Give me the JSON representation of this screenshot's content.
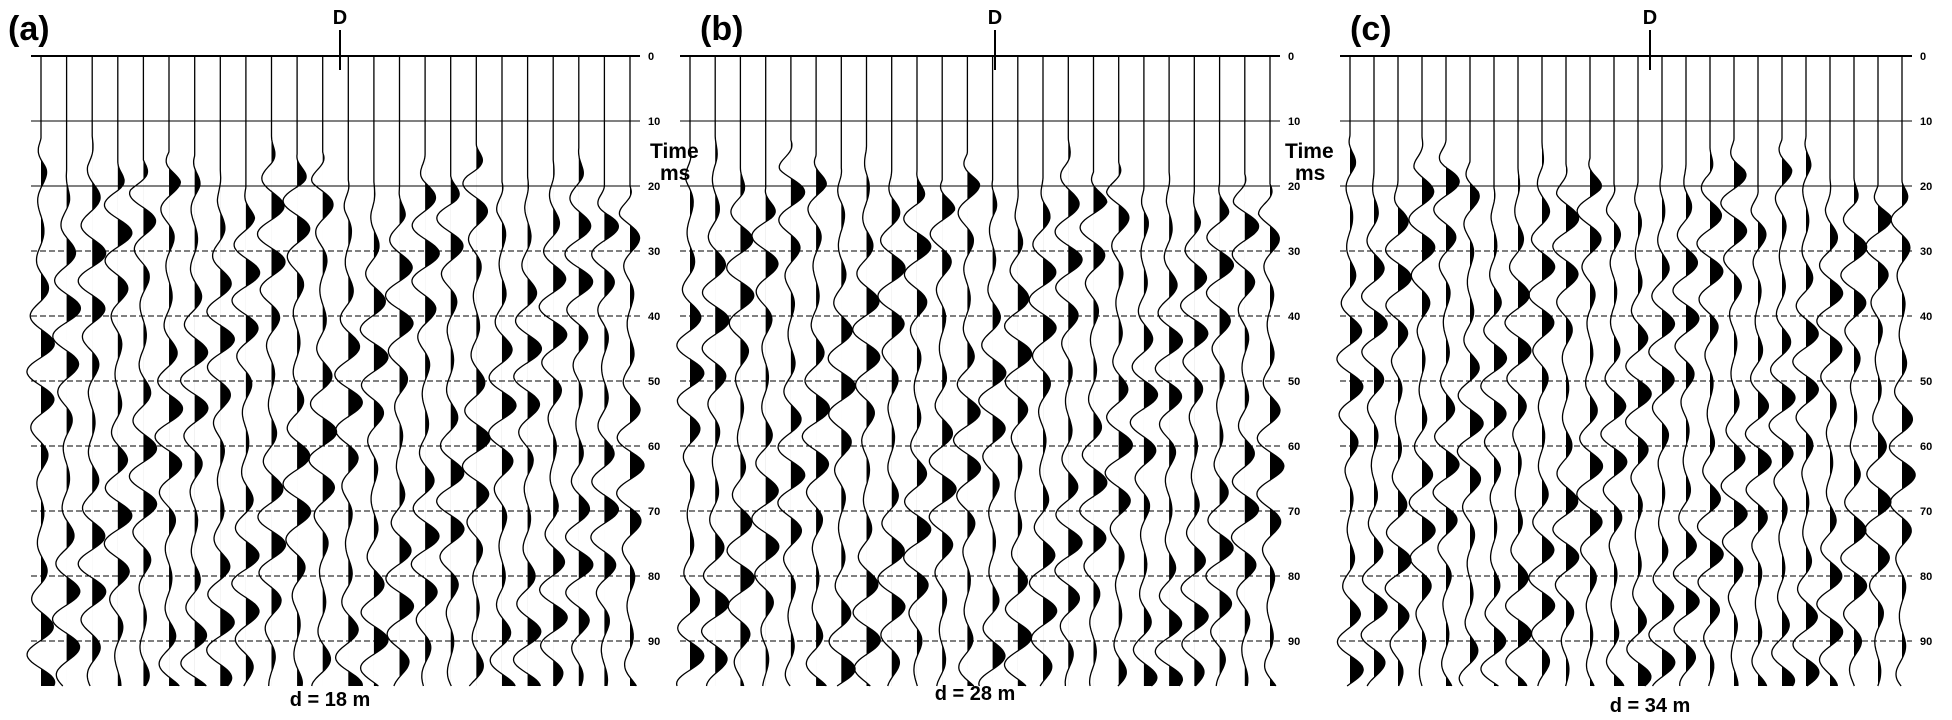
{
  "panels": [
    {
      "label": "(a)",
      "marker": "D",
      "caption": "d = 18 m"
    },
    {
      "label": "(b)",
      "marker": "D",
      "caption": "d = 28 m"
    },
    {
      "label": "(c)",
      "marker": "D",
      "caption": "d = 34 m"
    }
  ],
  "time_axis": {
    "title": "Time",
    "unit": "ms",
    "lim": [
      0,
      97
    ],
    "ticks": [
      0,
      10,
      20,
      30,
      40,
      50,
      60,
      70,
      80,
      90
    ]
  }
}
